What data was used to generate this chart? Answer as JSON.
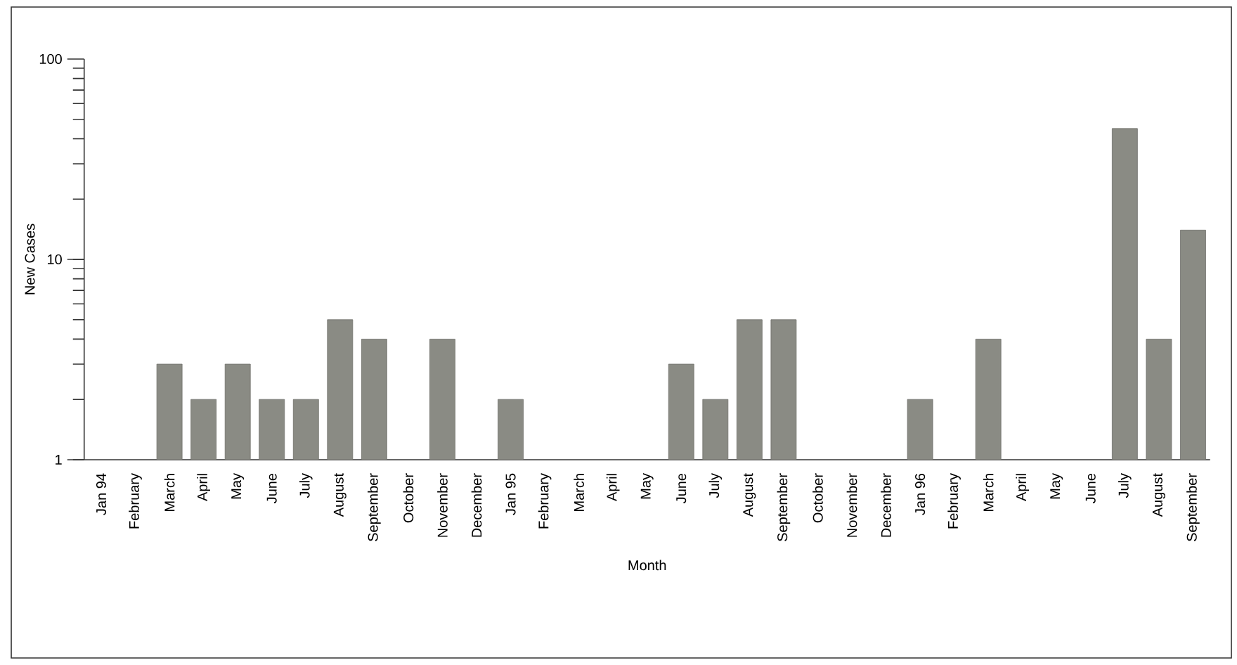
{
  "chart_data": {
    "type": "bar",
    "xlabel": "Month",
    "ylabel": "New Cases",
    "categories": [
      "Jan 94",
      "February",
      "March",
      "April",
      "May",
      "June",
      "July",
      "August",
      "September",
      "October",
      "November",
      "December",
      "Jan 95",
      "February",
      "March",
      "April",
      "May",
      "June",
      "July",
      "August",
      "September",
      "October",
      "November",
      "December",
      "Jan 96",
      "February",
      "March",
      "April",
      "May",
      "June",
      "July",
      "August",
      "September"
    ],
    "values": [
      null,
      null,
      3,
      2,
      3,
      2,
      2,
      5,
      4,
      null,
      4,
      null,
      2,
      null,
      null,
      null,
      null,
      3,
      2,
      5,
      5,
      null,
      null,
      null,
      2,
      null,
      4,
      null,
      null,
      null,
      45,
      4,
      14
    ],
    "color": "#8a8b84",
    "log": true,
    "ylim": [
      1,
      100
    ],
    "yticks": [
      1,
      10,
      100
    ]
  }
}
